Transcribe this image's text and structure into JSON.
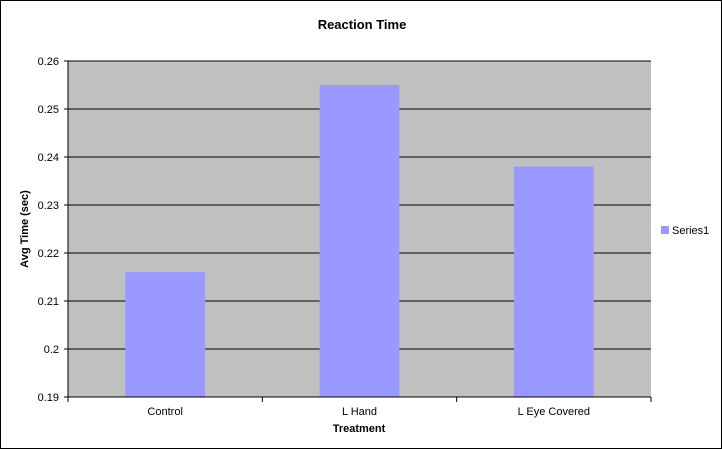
{
  "chart_data": {
    "type": "bar",
    "title": "Reaction Time",
    "xlabel": "Treatment",
    "ylabel": "Avg Time (sec)",
    "categories": [
      "Control",
      "L Hand",
      "L Eye Covered"
    ],
    "series": [
      {
        "name": "Series1",
        "values": [
          0.216,
          0.255,
          0.238
        ]
      }
    ],
    "ylim": [
      0.19,
      0.26
    ],
    "yticks": [
      "0.19",
      "0.2",
      "0.21",
      "0.22",
      "0.23",
      "0.24",
      "0.25",
      "0.26"
    ],
    "grid": true,
    "legend_position": "right",
    "colors": {
      "bar": "#9999ff",
      "plot_background": "#c0c0c0",
      "gridline": "#000000"
    }
  }
}
